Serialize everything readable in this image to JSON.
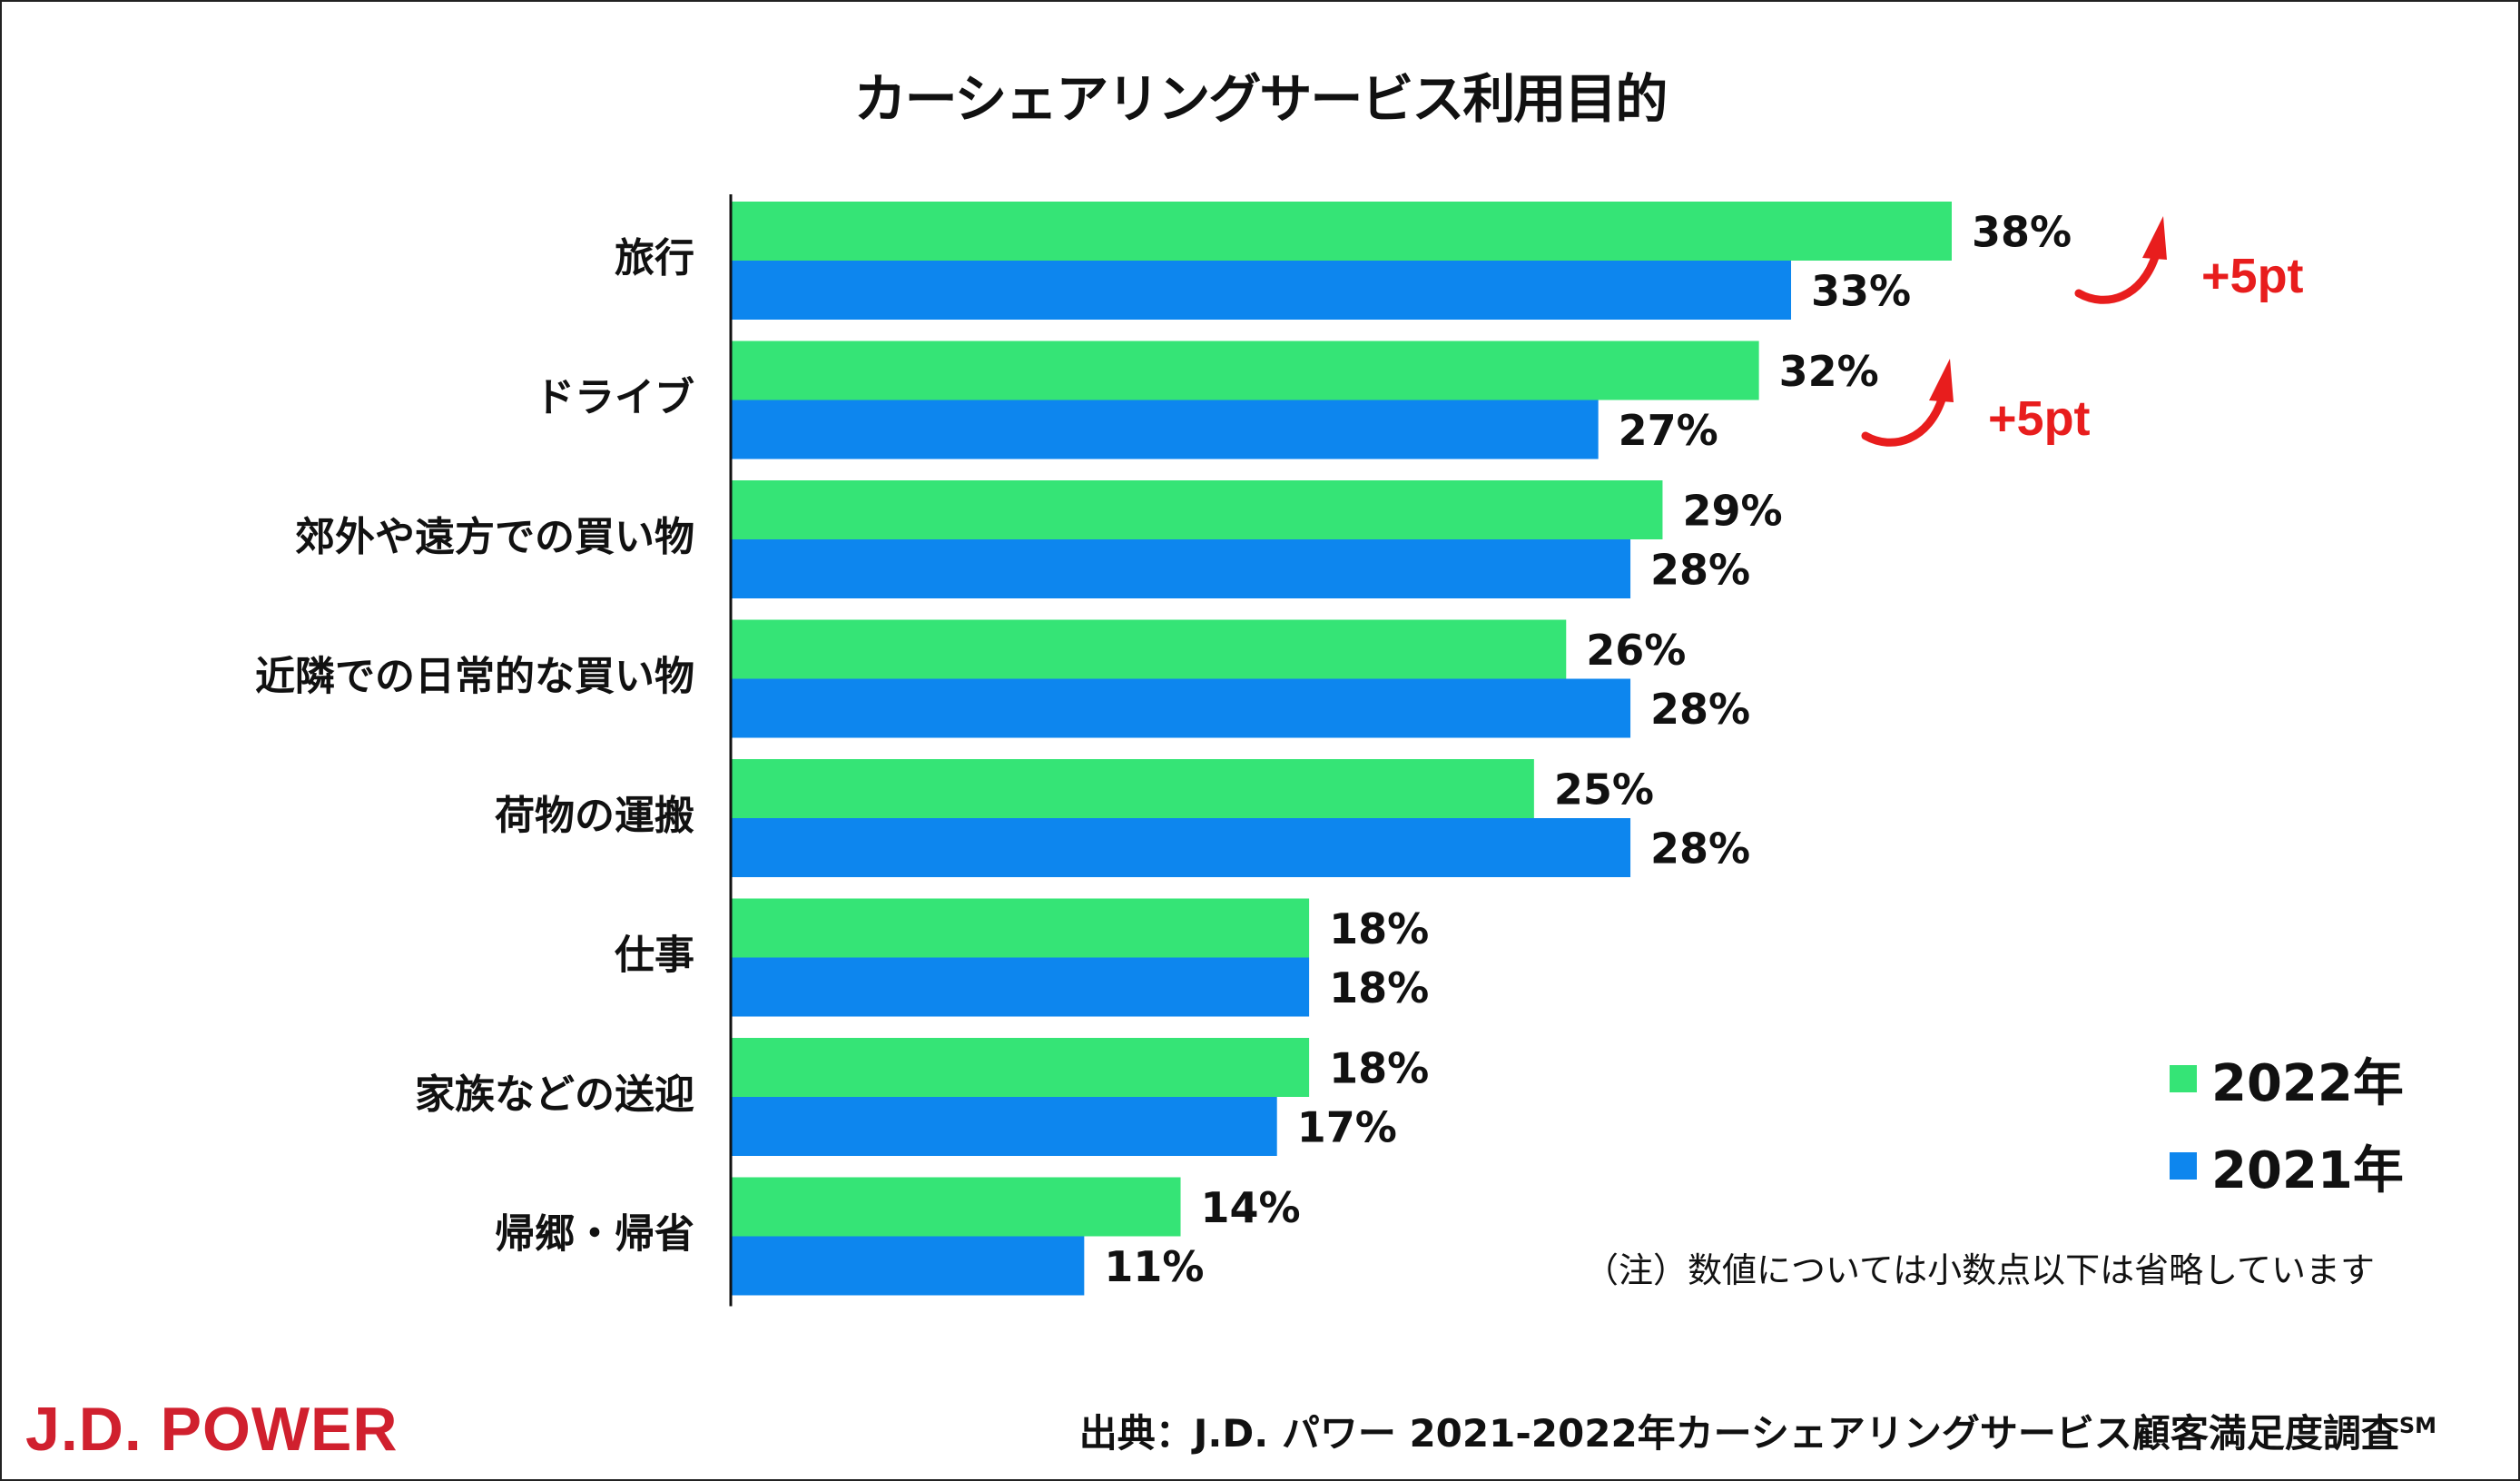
{
  "chart_data": {
    "type": "bar",
    "orientation": "horizontal",
    "title": "カーシェアリングサービス利用目的",
    "categories": [
      "旅行",
      "ドライブ",
      "郊外や遠方での買い物",
      "近隣での日常的な買い物",
      "荷物の運搬",
      "仕事",
      "家族などの送迎",
      "帰郷・帰省"
    ],
    "series": [
      {
        "name": "2022年",
        "color": "#35e476",
        "values": [
          38,
          32,
          29,
          26,
          25,
          18,
          18,
          14
        ],
        "labels": [
          "38%",
          "32%",
          "29%",
          "26%",
          "25%",
          "18%",
          "18%",
          "14%"
        ]
      },
      {
        "name": "2021年",
        "color": "#0d86ee",
        "values": [
          33,
          27,
          28,
          28,
          28,
          18,
          17,
          11
        ],
        "labels": [
          "33%",
          "27%",
          "28%",
          "28%",
          "28%",
          "18%",
          "17%",
          "11%"
        ]
      }
    ],
    "xlim": [
      0,
      38
    ],
    "annotations": [
      {
        "category": "旅行",
        "text": "+5pt",
        "color": "#e81d1d"
      },
      {
        "category": "ドライブ",
        "text": "+5pt",
        "color": "#e81d1d"
      }
    ],
    "legend_position": "bottom-right"
  },
  "note": "（注）数値については小数点以下は省略しています",
  "brand": "J.D. POWER",
  "source_text": "出典：J.D. パワー 2021-2022年カーシェアリングサービス顧客満足度調査",
  "source_mark": "SM"
}
